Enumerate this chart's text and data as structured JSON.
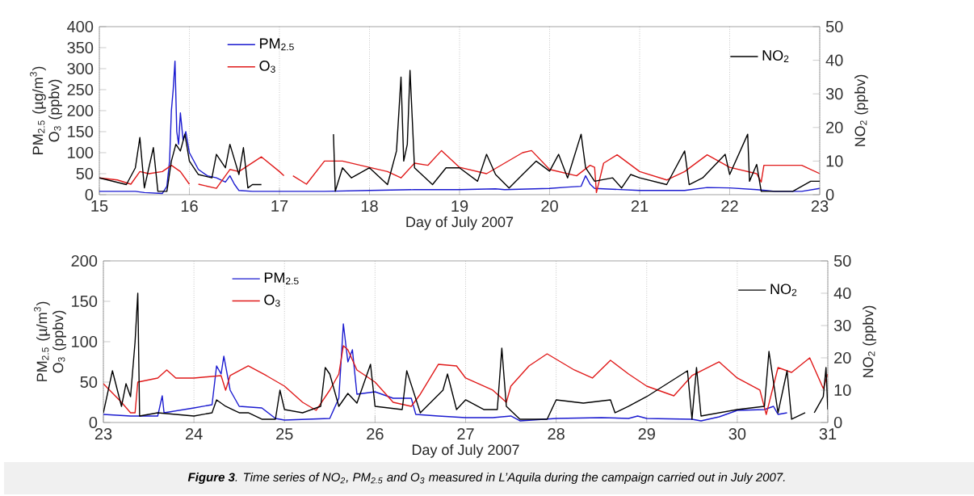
{
  "chart_data": [
    {
      "type": "line",
      "xlabel": "Day of July 2007",
      "ylabel": "PM$_{2.5}$ (µg/m$^{3}$) O$_{3}$ (ppbv)",
      "y2label": "NO$_{2}$ (ppbv)",
      "xlim": [
        15,
        23
      ],
      "xticks": [
        15,
        16,
        17,
        18,
        19,
        20,
        21,
        22,
        23
      ],
      "ylim": [
        0,
        400
      ],
      "yticks": [
        0,
        50,
        100,
        150,
        200,
        250,
        300,
        350,
        400
      ],
      "y2lim": [
        0,
        50
      ],
      "y2ticks": [
        0,
        10,
        20,
        30,
        40,
        50
      ],
      "grid": "x",
      "legend": "top",
      "series": [
        {
          "name": "PM$_{2.5}$",
          "color": "#1a1ad0",
          "x": [
            15.0,
            15.4,
            15.5,
            15.7,
            15.75,
            15.78,
            15.8,
            15.82,
            15.84,
            15.86,
            15.88,
            15.9,
            15.93,
            15.96,
            16.0,
            16.1,
            16.2,
            16.3,
            16.4,
            16.45,
            16.5,
            16.55,
            16.7,
            17.0,
            17.5,
            18.0,
            18.5,
            19.0,
            19.4,
            19.5,
            20.0,
            20.2,
            20.35,
            20.4,
            20.45,
            20.5,
            21.0,
            21.5,
            21.75,
            22.0,
            22.3,
            22.4,
            22.5,
            22.8,
            23.0
          ],
          "values": [
            8,
            8,
            5,
            3,
            20,
            80,
            200,
            250,
            318,
            150,
            120,
            195,
            130,
            150,
            100,
            60,
            45,
            40,
            30,
            45,
            25,
            10,
            8,
            8,
            8,
            10,
            12,
            12,
            14,
            12,
            15,
            18,
            20,
            45,
            25,
            15,
            10,
            10,
            17,
            16,
            12,
            10,
            8,
            8,
            15
          ]
        },
        {
          "name": "O$_{3}$",
          "color": "#e01a1a",
          "x": [
            15.0,
            15.2,
            15.35,
            15.45,
            15.55,
            15.7,
            15.8,
            15.9,
            16.0,
            16.05,
            16.1,
            16.3,
            16.45,
            16.55,
            16.8,
            17.0,
            17.05,
            17.1,
            17.15,
            17.3,
            17.5,
            17.7,
            17.9,
            18.2,
            18.35,
            18.5,
            18.65,
            18.8,
            19.0,
            19.3,
            19.5,
            19.7,
            19.8,
            20.0,
            20.3,
            20.45,
            20.5,
            20.52,
            20.6,
            20.75,
            21.0,
            21.3,
            21.5,
            21.75,
            22.0,
            22.3,
            22.35,
            22.38,
            22.8,
            23.0
          ],
          "values": [
            40,
            35,
            25,
            55,
            50,
            55,
            70,
            55,
            25,
            null,
            25,
            15,
            60,
            55,
            90,
            55,
            45,
            null,
            45,
            25,
            80,
            80,
            70,
            55,
            40,
            75,
            70,
            105,
            65,
            50,
            75,
            100,
            105,
            60,
            45,
            70,
            65,
            5,
            75,
            95,
            55,
            35,
            55,
            95,
            65,
            50,
            30,
            70,
            70,
            50
          ]
        },
        {
          "name": "NO$_{2}$",
          "color": "#000000",
          "axis": "y2",
          "x": [
            15.0,
            15.3,
            15.4,
            15.45,
            15.5,
            15.6,
            15.65,
            15.75,
            15.8,
            15.85,
            15.9,
            15.95,
            16.0,
            16.1,
            16.25,
            16.3,
            16.4,
            16.45,
            16.55,
            16.6,
            16.65,
            16.7,
            16.8,
            17.2,
            17.6,
            17.62,
            17.7,
            17.8,
            18.0,
            18.2,
            18.3,
            18.35,
            18.38,
            18.42,
            18.45,
            18.5,
            18.7,
            18.85,
            19.0,
            19.2,
            19.3,
            19.4,
            19.55,
            19.7,
            19.85,
            20.0,
            20.1,
            20.2,
            20.35,
            20.4,
            20.5,
            20.7,
            20.8,
            20.9,
            21.0,
            21.3,
            21.5,
            21.55,
            21.7,
            21.95,
            22.0,
            22.2,
            22.22,
            22.3,
            22.35,
            22.5,
            22.7,
            22.9,
            23.0
          ],
          "values": [
            5,
            3,
            8,
            17,
            2,
            14,
            1,
            1,
            10,
            15,
            13,
            18,
            10,
            6,
            5,
            12,
            8,
            15,
            6,
            14,
            2,
            3,
            3,
            null,
            18,
            1,
            8,
            5,
            8,
            3,
            13,
            35,
            10,
            15,
            37,
            8,
            3,
            8,
            8,
            4,
            12,
            6,
            2,
            6,
            10,
            7,
            12,
            5,
            18,
            8,
            4,
            5,
            2,
            6,
            5,
            3,
            13,
            3,
            5,
            12,
            6,
            18,
            4,
            9,
            1,
            1,
            1,
            4,
            4
          ]
        }
      ]
    },
    {
      "type": "line",
      "xlabel": "Day of July 2007",
      "ylabel": "PM$_{2.5}$ (µ/m$^{3}$) O$_{3}$ (ppbv)",
      "y2label": "NO$_{2}$ (ppbv)",
      "xlim": [
        23,
        31
      ],
      "xticks": [
        23,
        24,
        25,
        26,
        27,
        28,
        29,
        30,
        31
      ],
      "ylim": [
        0,
        200
      ],
      "yticks": [
        0,
        50,
        100,
        150,
        200
      ],
      "y2lim": [
        0,
        50
      ],
      "y2ticks": [
        0,
        10,
        20,
        30,
        40,
        50
      ],
      "grid": "x",
      "legend": "top",
      "annotations": [
        "**Figure 3**. Time series of NO$_{2}$, PM$_{2.5}$ and O$_{3}$ measured in L’Aquila during the campaign carried out in July 2007."
      ],
      "series": [
        {
          "name": "PM$_{2.5}$",
          "color": "#1a1ad0",
          "x": [
            23.0,
            23.3,
            23.6,
            23.65,
            23.67,
            24.0,
            24.2,
            24.25,
            24.3,
            24.33,
            24.4,
            24.5,
            24.75,
            24.9,
            25.0,
            25.5,
            25.6,
            25.65,
            25.7,
            25.75,
            25.8,
            26.0,
            26.2,
            26.4,
            26.45,
            26.7,
            27.0,
            27.3,
            27.5,
            27.6,
            28.0,
            28.5,
            28.8,
            28.9,
            29.0,
            29.5,
            29.6,
            29.8,
            30.0,
            30.3,
            30.4,
            30.45,
            30.55
          ],
          "values": [
            10,
            8,
            8,
            33,
            12,
            18,
            22,
            70,
            60,
            82,
            40,
            20,
            18,
            5,
            3,
            5,
            30,
            122,
            75,
            90,
            35,
            38,
            30,
            30,
            10,
            8,
            6,
            6,
            8,
            2,
            5,
            6,
            5,
            8,
            5,
            4,
            2,
            7,
            15,
            16,
            20,
            10,
            12
          ]
        },
        {
          "name": "O$_{3}$",
          "color": "#e01a1a",
          "x": [
            23.0,
            23.2,
            23.3,
            23.35,
            23.38,
            23.6,
            23.7,
            23.8,
            24.0,
            24.3,
            24.35,
            24.4,
            24.6,
            24.8,
            25.0,
            25.2,
            25.35,
            25.5,
            25.6,
            25.65,
            25.7,
            25.8,
            26.0,
            26.2,
            26.4,
            26.5,
            26.7,
            26.9,
            27.0,
            27.3,
            27.45,
            27.5,
            27.7,
            27.9,
            28.2,
            28.4,
            28.6,
            28.8,
            29.0,
            29.3,
            29.5,
            29.8,
            30.0,
            30.25,
            30.32,
            30.45,
            30.6,
            30.8,
            30.95,
            31.0
          ],
          "values": [
            48,
            25,
            12,
            12,
            50,
            55,
            65,
            55,
            55,
            58,
            40,
            58,
            70,
            58,
            45,
            25,
            15,
            40,
            60,
            95,
            90,
            65,
            50,
            25,
            20,
            35,
            72,
            70,
            55,
            40,
            25,
            45,
            70,
            85,
            65,
            55,
            77,
            60,
            45,
            33,
            58,
            75,
            55,
            40,
            10,
            68,
            62,
            80,
            42,
            60
          ]
        },
        {
          "name": "NO$_{2}$",
          "color": "#000000",
          "axis": "y2",
          "x": [
            23.0,
            23.1,
            23.2,
            23.25,
            23.3,
            23.35,
            23.38,
            23.4,
            23.6,
            24.0,
            24.2,
            24.25,
            24.35,
            24.5,
            24.6,
            24.75,
            24.9,
            24.95,
            25.0,
            25.2,
            25.4,
            25.45,
            25.5,
            25.6,
            25.7,
            25.8,
            25.95,
            26.0,
            26.3,
            26.35,
            26.5,
            26.75,
            26.8,
            26.9,
            27.0,
            27.2,
            27.35,
            27.4,
            27.45,
            27.6,
            27.9,
            28.0,
            28.3,
            28.6,
            28.65,
            28.8,
            29.0,
            29.45,
            29.5,
            29.55,
            29.6,
            29.8,
            30.0,
            30.3,
            30.35,
            30.45,
            30.55,
            30.6,
            30.75,
            30.8,
            30.85,
            30.95,
            30.98,
            31.0
          ],
          "values": [
            3,
            16,
            5,
            12,
            8,
            25,
            40,
            2,
            3,
            2,
            3,
            7,
            5,
            3,
            3,
            1,
            1,
            10,
            4,
            3,
            5,
            17,
            15,
            5,
            9,
            6,
            18,
            5,
            4,
            16,
            3,
            10,
            15,
            4,
            7,
            4,
            4,
            23,
            5,
            1,
            1,
            7,
            6,
            7,
            3,
            5,
            8,
            16,
            1,
            17,
            2,
            3,
            4,
            5,
            22,
            3,
            16,
            1,
            3,
            null,
            3,
            8,
            17,
            4
          ]
        }
      ]
    }
  ]
}
